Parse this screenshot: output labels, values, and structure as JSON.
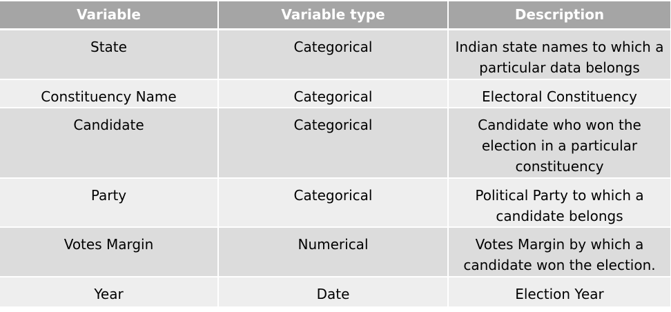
{
  "table": {
    "headers": [
      "Variable",
      "Variable type",
      "Description"
    ],
    "rows": [
      {
        "variable": "State",
        "type": "Categorical",
        "description": "Indian state names to which a particular data belongs"
      },
      {
        "variable": "Constituency Name",
        "type": "Categorical",
        "description": "Electoral Constituency"
      },
      {
        "variable": "Candidate",
        "type": "Categorical",
        "description": "Candidate who won the election in a particular constituency"
      },
      {
        "variable": "Party",
        "type": "Categorical",
        "description": "Political Party to which a candidate belongs"
      },
      {
        "variable": "Votes Margin",
        "type": "Numerical",
        "description": "Votes Margin by which a candidate won the election."
      },
      {
        "variable": "Year",
        "type": "Date",
        "description": "Election Year"
      }
    ]
  }
}
